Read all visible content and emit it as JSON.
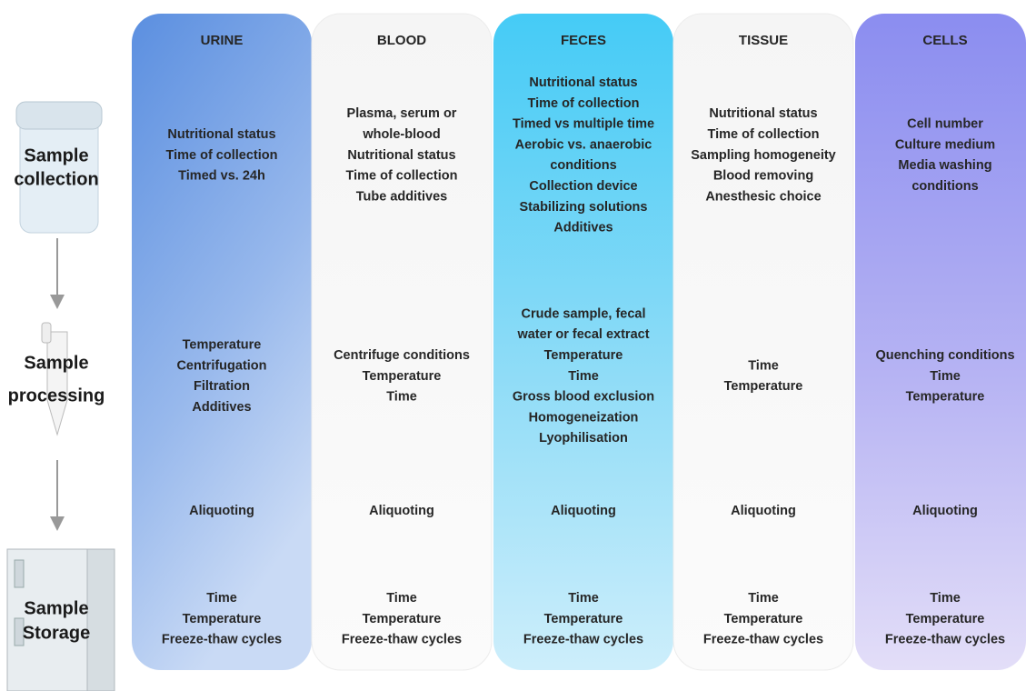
{
  "row_labels": [
    [
      "Sample",
      "collection"
    ],
    [
      "Sample",
      "processing"
    ],
    [
      "Sample",
      "Storage"
    ]
  ],
  "columns": [
    {
      "title": "URINE",
      "collection": [
        "Nutritional status",
        "Time of collection",
        "Timed vs. 24h"
      ],
      "processing": [
        "Temperature",
        "Centrifugation",
        "Filtration",
        "Additives"
      ],
      "aliquoting": "Aliquoting",
      "storage": [
        "Time",
        "Temperature",
        "Freeze-thaw cycles"
      ]
    },
    {
      "title": "BLOOD",
      "collection": [
        "Plasma, serum or",
        "whole-blood",
        "Nutritional status",
        "Time of collection",
        "Tube additives"
      ],
      "processing": [
        "Centrifuge conditions",
        "Temperature",
        "Time"
      ],
      "aliquoting": "Aliquoting",
      "storage": [
        "Time",
        "Temperature",
        "Freeze-thaw cycles"
      ]
    },
    {
      "title": "FECES",
      "collection": [
        "Nutritional status",
        "Time of collection",
        "Timed vs multiple time",
        "Aerobic vs. anaerobic",
        "conditions",
        "Collection device",
        "Stabilizing solutions",
        "Additives"
      ],
      "processing": [
        "Crude sample, fecal",
        "water or fecal extract",
        "Temperature",
        "Time",
        "Gross blood exclusion",
        "Homogeneization",
        "Lyophilisation"
      ],
      "aliquoting": "Aliquoting",
      "storage": [
        "Time",
        "Temperature",
        "Freeze-thaw cycles"
      ]
    },
    {
      "title": "TISSUE",
      "collection": [
        "Nutritional status",
        "Time of collection",
        "Sampling homogeneity",
        "Blood removing",
        "Anesthesic choice"
      ],
      "processing": [
        "Time",
        "Temperature"
      ],
      "aliquoting": "Aliquoting",
      "storage": [
        "Time",
        "Temperature",
        "Freeze-thaw cycles"
      ]
    },
    {
      "title": "CELLS",
      "collection": [
        "Cell number",
        "Culture medium",
        "Media washing",
        "conditions"
      ],
      "processing": [
        "Quenching conditions",
        "Time",
        "Temperature"
      ],
      "aliquoting": "Aliquoting",
      "storage": [
        "Time",
        "Temperature",
        "Freeze-thaw cycles"
      ]
    }
  ]
}
